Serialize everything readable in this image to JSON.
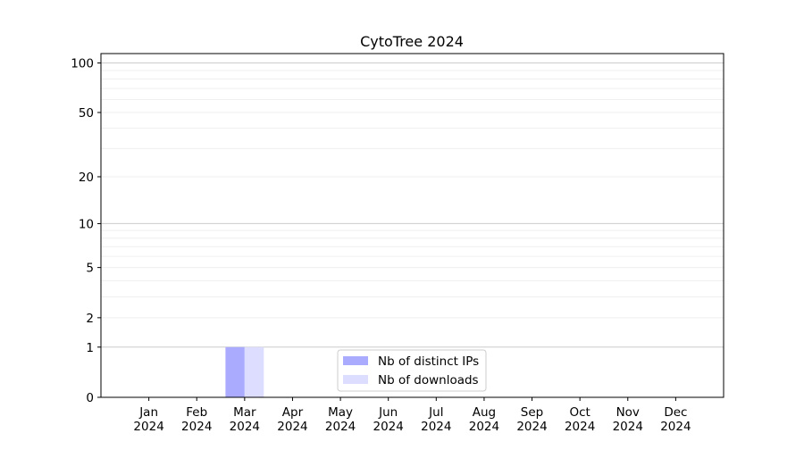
{
  "chart_data": {
    "type": "bar",
    "title": "CytoTree 2024",
    "xlabel": "",
    "ylabel": "",
    "y_scale": "log(1+y)",
    "ylim": [
      0,
      114
    ],
    "grid": true,
    "legend_placement": "lower-center",
    "yticks": [
      0,
      1,
      2,
      5,
      10,
      20,
      50,
      100
    ],
    "ytick_labels": [
      "0",
      "1",
      "2",
      "5",
      "10",
      "20",
      "50",
      "100"
    ],
    "categories": [
      "Jan\n2024",
      "Feb\n2024",
      "Mar\n2024",
      "Apr\n2024",
      "May\n2024",
      "Jun\n2024",
      "Jul\n2024",
      "Aug\n2024",
      "Sep\n2024",
      "Oct\n2024",
      "Nov\n2024",
      "Dec\n2024"
    ],
    "series": [
      {
        "name": "Nb of distinct IPs",
        "color": "#aaaaff",
        "values": [
          0,
          0,
          1,
          0,
          0,
          0,
          0,
          0,
          0,
          0,
          0,
          0
        ]
      },
      {
        "name": "Nb of downloads",
        "color": "#ddddff",
        "values": [
          0,
          0,
          1,
          0,
          0,
          0,
          0,
          0,
          0,
          0,
          0,
          0
        ]
      }
    ]
  }
}
